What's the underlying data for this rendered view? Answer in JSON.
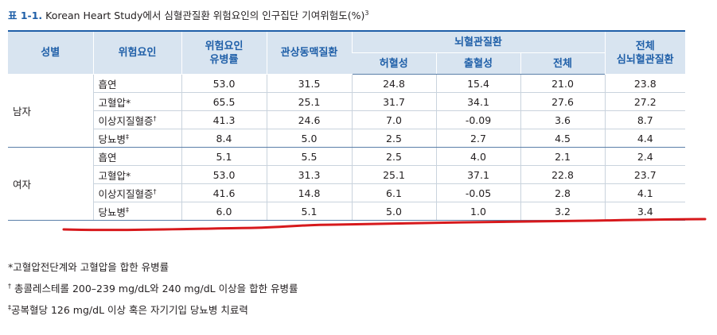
{
  "caption": {
    "label": "표 1-1.",
    "text": " Korean Heart Study에서 심혈관질환 위험요인의 인구집단 기여위험도(%)",
    "sup": "3"
  },
  "table": {
    "headers": {
      "sex": "성별",
      "factor": "위험요인",
      "prevalence_line1": "위험요인",
      "prevalence_line2": "유병률",
      "coronary": "관상동맥질환",
      "cerebro": "뇌혈관질환",
      "ischemic": "허혈성",
      "hemorrhagic": "출혈성",
      "cerebro_total": "전체",
      "total_line1": "전체",
      "total_line2": "심뇌혈관질환"
    },
    "groups": [
      {
        "sex": "남자",
        "rows": [
          {
            "factor": "흡연",
            "mark": "",
            "values": [
              "53.0",
              "31.5",
              "24.8",
              "15.4",
              "21.0",
              "23.8"
            ]
          },
          {
            "factor": "고혈압*",
            "mark": "",
            "values": [
              "65.5",
              "25.1",
              "31.7",
              "34.1",
              "27.6",
              "27.2"
            ]
          },
          {
            "factor": "이상지질혈증",
            "mark": "†",
            "values": [
              "41.3",
              "24.6",
              "7.0",
              "-0.09",
              "3.6",
              "8.7"
            ]
          },
          {
            "factor": "당뇨병",
            "mark": "‡",
            "values": [
              "8.4",
              "5.0",
              "2.5",
              "2.7",
              "4.5",
              "4.4"
            ]
          }
        ]
      },
      {
        "sex": "여자",
        "rows": [
          {
            "factor": "흡연",
            "mark": "",
            "values": [
              "5.1",
              "5.5",
              "2.5",
              "4.0",
              "2.1",
              "2.4"
            ]
          },
          {
            "factor": "고혈압*",
            "mark": "",
            "values": [
              "53.0",
              "31.3",
              "25.1",
              "37.1",
              "22.8",
              "23.7"
            ]
          },
          {
            "factor": "이상지질혈증",
            "mark": "†",
            "values": [
              "41.6",
              "14.8",
              "6.1",
              "-0.05",
              "2.8",
              "4.1"
            ]
          },
          {
            "factor": "당뇨병",
            "mark": "‡",
            "values": [
              "6.0",
              "5.1",
              "5.0",
              "1.0",
              "3.2",
              "3.4"
            ]
          }
        ]
      }
    ]
  },
  "notes": [
    {
      "mark": "",
      "text": "*고혈압전단계와 고혈압을 합한 유병률"
    },
    {
      "mark": "†",
      "text": " 총콜레스테롤 200–239 mg/dL와 240 mg/dL 이상을 합한 유병률"
    },
    {
      "mark": "‡",
      "text": "공복혈당 126 mg/dL 이상 혹은 자기기입 당뇨병 치료력"
    }
  ],
  "colors": {
    "header_bg": "#d8e4f0",
    "header_text": "#1f5fa8",
    "annotation_line": "#d7191c"
  }
}
